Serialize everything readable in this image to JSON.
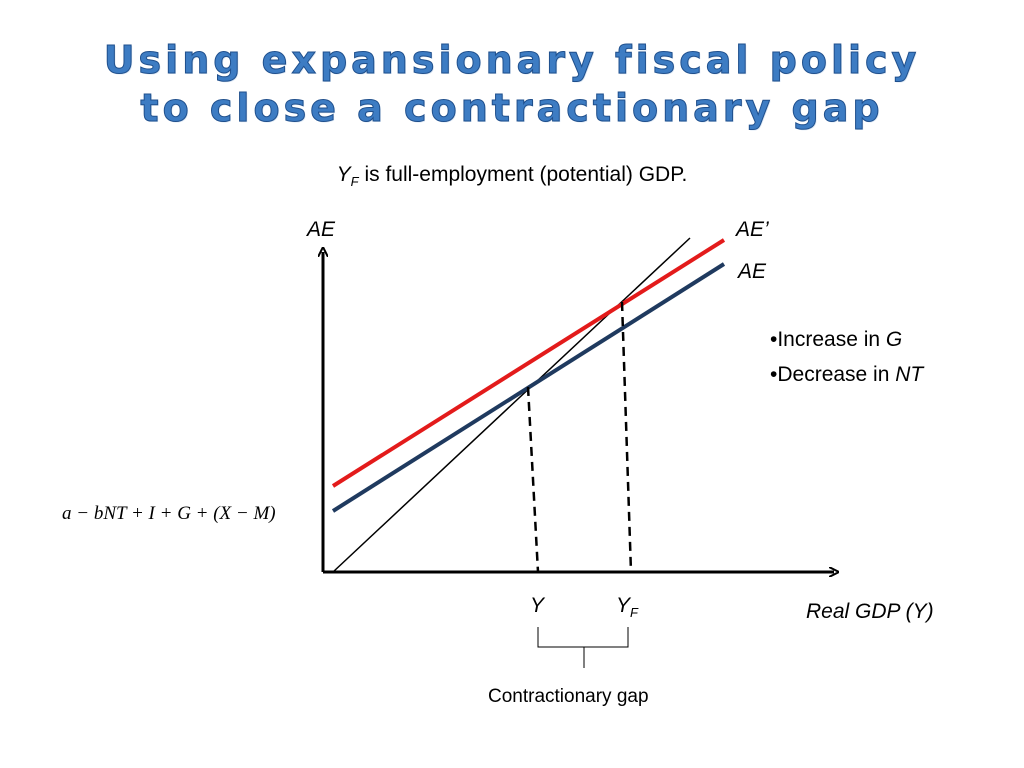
{
  "title": {
    "line1": "Using expansionary fiscal policy",
    "line2": "to close a contractionary gap"
  },
  "subtitle": {
    "var": "Y",
    "sub": "F",
    "text": " is full-employment (potential) GDP."
  },
  "axes": {
    "y_label": "AE",
    "x_label": "Real GDP (Y)"
  },
  "curves": {
    "new_label": "AE’",
    "old_label": "AE",
    "new_color": "#e31b1b",
    "old_color": "#1f3a5f"
  },
  "intercept_formula": "a − bNT + I + G + (X − M)",
  "points": {
    "y_label": "Y",
    "yf_var": "Y",
    "yf_sub": "F"
  },
  "bullets": [
    {
      "text": "•Increase in ",
      "var": "G"
    },
    {
      "text": "•Decrease in ",
      "var": "NT"
    }
  ],
  "gap_label": "Contractionary gap"
}
